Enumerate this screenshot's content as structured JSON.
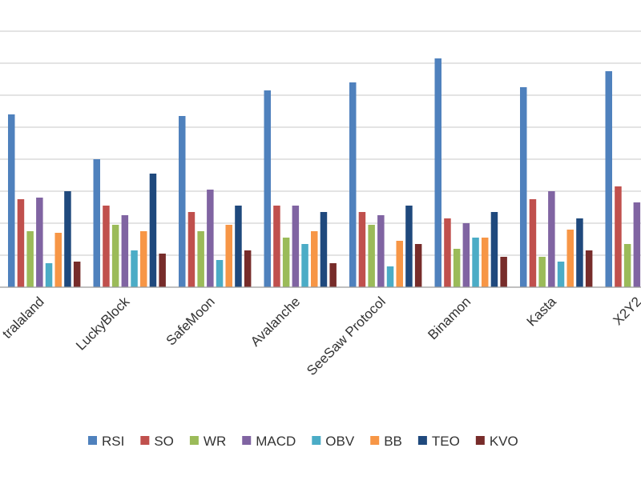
{
  "chart_data": {
    "type": "bar",
    "title": "",
    "xlabel": "",
    "ylabel": "",
    "ylim": [
      0,
      90
    ],
    "grid": true,
    "legend_position": "bottom",
    "categories": [
      "Metaverse/Lastraland",
      "LuckyBlock",
      "SafeMoon",
      "Avalanche",
      "SeeSaw Protocol",
      "Binamon",
      "Kasta",
      "X2Y2"
    ],
    "visible_category_labels": [
      "tralaland",
      "LuckyBlock",
      "SafeMoon",
      "Avalanche",
      "SeeSaw Protocol",
      "Binamon",
      "Kasta",
      "X2Y2"
    ],
    "series": [
      {
        "name": "RSI",
        "color": "#4f81bd",
        "values": [
          54,
          40,
          53.5,
          61.5,
          64,
          71.5,
          62.5,
          67.5
        ]
      },
      {
        "name": "SO",
        "color": "#c0504d",
        "values": [
          27.5,
          25.5,
          23.5,
          25.5,
          23.5,
          21.5,
          27.5,
          31.5
        ]
      },
      {
        "name": "WR",
        "color": "#9bbb59",
        "values": [
          17.5,
          19.5,
          17.5,
          15.5,
          19.5,
          12,
          9.5,
          13.5
        ]
      },
      {
        "name": "MACD",
        "color": "#8064a2",
        "values": [
          28,
          22.5,
          30.5,
          25.5,
          22.5,
          20,
          30,
          26.5
        ]
      },
      {
        "name": "OBV",
        "color": "#4bacc6",
        "values": [
          7.5,
          11.5,
          8.5,
          13.5,
          6.5,
          15.5,
          8,
          11.5
        ]
      },
      {
        "name": "BB",
        "color": "#f79646",
        "values": [
          17,
          17.5,
          19.5,
          17.5,
          14.5,
          15.5,
          18,
          null
        ]
      },
      {
        "name": "TEO",
        "color": "#1f497d",
        "values": [
          30,
          35.5,
          25.5,
          23.5,
          25.5,
          23.5,
          21.5,
          null
        ]
      },
      {
        "name": "KVO",
        "color": "#772c2a",
        "values": [
          8,
          10.5,
          11.5,
          7.5,
          13.5,
          9.5,
          11.5,
          null
        ]
      }
    ]
  }
}
